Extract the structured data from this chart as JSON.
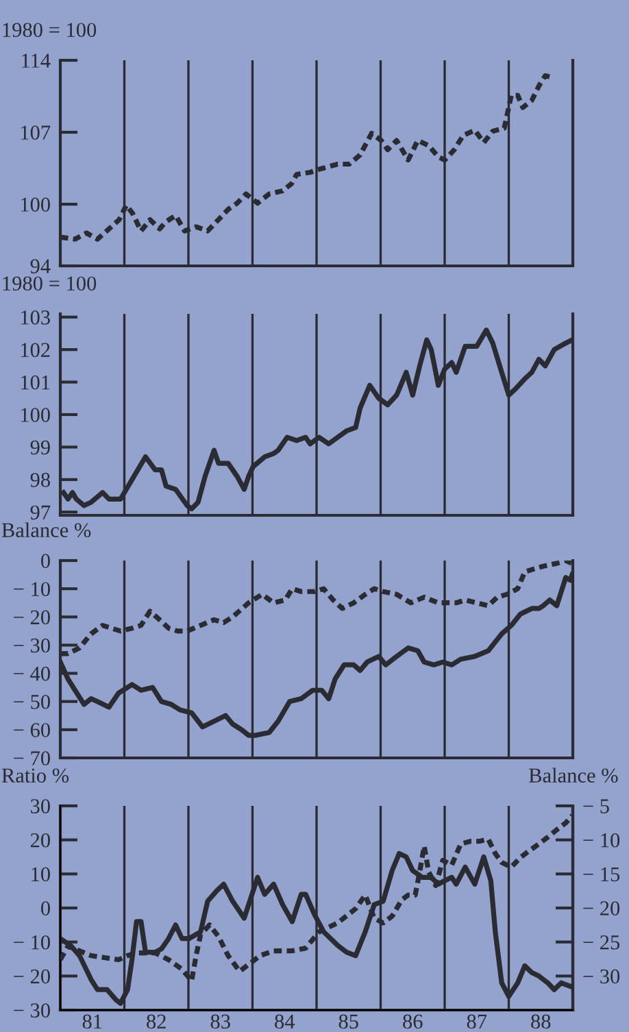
{
  "chart_data": [
    {
      "type": "line",
      "ylabel": "1980 = 100",
      "tick_labels": "y",
      "xlim": [
        80.5,
        88.5
      ],
      "xticks": [
        81,
        82,
        83,
        84,
        85,
        86,
        87,
        88
      ],
      "ylim": [
        94,
        114
      ],
      "yticks": [
        94,
        100,
        107,
        114
      ],
      "ref_lines": [
        {
          "axis": "x",
          "value": 81.5,
          "color": "#2b2b33"
        },
        {
          "axis": "x",
          "value": 82.5,
          "color": "#2b2b33"
        },
        {
          "axis": "x",
          "value": 83.5,
          "color": "#2b2b33"
        },
        {
          "axis": "x",
          "value": 84.5,
          "color": "#2b2b33"
        },
        {
          "axis": "x",
          "value": 85.5,
          "color": "#2b2b33"
        },
        {
          "axis": "x",
          "value": 86.5,
          "color": "#2b2b33"
        },
        {
          "axis": "x",
          "value": 87.5,
          "color": "#2b2b33"
        }
      ],
      "series": [
        {
          "color": "#2b2b33",
          "line_style": "dashed",
          "x": [
            80.5,
            80.73,
            80.91,
            81.08,
            81.26,
            81.42,
            81.53,
            81.63,
            81.76,
            81.9,
            82.05,
            82.15,
            82.3,
            82.44,
            82.62,
            82.8,
            82.97,
            83.12,
            83.26,
            83.4,
            83.58,
            83.76,
            83.97,
            84.11,
            84.19,
            84.4,
            84.54,
            84.83,
            85.01,
            85.18,
            85.36,
            85.51,
            85.61,
            85.75,
            85.93,
            86.08,
            86.25,
            86.4,
            86.5,
            86.65,
            86.79,
            86.97,
            87.11,
            87.25,
            87.43,
            87.54,
            87.64,
            87.72,
            87.86,
            87.97,
            88.07,
            88.14
          ],
          "values": [
            96.8,
            96.6,
            97.2,
            96.6,
            97.6,
            98.5,
            99.9,
            99.1,
            97.4,
            98.5,
            97.6,
            98.3,
            98.9,
            97.4,
            97.8,
            97.4,
            98.5,
            99.5,
            100.1,
            101.0,
            100.1,
            101.0,
            101.3,
            102.0,
            102.9,
            103.1,
            103.4,
            103.9,
            103.9,
            104.8,
            106.9,
            106.2,
            105.3,
            106.2,
            104.3,
            106.2,
            105.7,
            104.6,
            104.3,
            105.3,
            106.7,
            107.2,
            106.0,
            107.1,
            107.4,
            110.6,
            110.6,
            109.4,
            110.1,
            111.5,
            112.5,
            112.4
          ]
        }
      ]
    },
    {
      "type": "line",
      "ylabel": "1980 = 100",
      "tick_labels": "y",
      "xlim": [
        80.5,
        88.5
      ],
      "xticks": [
        81,
        82,
        83,
        84,
        85,
        86,
        87,
        88
      ],
      "ylim": [
        96.9,
        103.1
      ],
      "yticks": [
        97,
        98,
        99,
        100,
        101,
        102,
        103
      ],
      "ref_lines": [
        {
          "axis": "x",
          "value": 81.5,
          "color": "#2b2b33"
        },
        {
          "axis": "x",
          "value": 82.5,
          "color": "#2b2b33"
        },
        {
          "axis": "x",
          "value": 83.5,
          "color": "#2b2b33"
        },
        {
          "axis": "x",
          "value": 84.5,
          "color": "#2b2b33"
        },
        {
          "axis": "x",
          "value": 85.5,
          "color": "#2b2b33"
        },
        {
          "axis": "x",
          "value": 86.5,
          "color": "#2b2b33"
        },
        {
          "axis": "x",
          "value": 87.5,
          "color": "#2b2b33"
        }
      ],
      "series": [
        {
          "color": "#2b2b33",
          "line_style": "solid",
          "x": [
            80.55,
            80.62,
            80.69,
            80.75,
            80.87,
            80.98,
            81.16,
            81.26,
            81.44,
            81.62,
            81.83,
            81.98,
            82.08,
            82.15,
            82.3,
            82.48,
            82.55,
            82.65,
            82.76,
            82.9,
            82.97,
            83.12,
            83.26,
            83.37,
            83.44,
            83.51,
            83.69,
            83.83,
            83.9,
            84.04,
            84.19,
            84.33,
            84.4,
            84.54,
            84.69,
            84.83,
            84.97,
            85.11,
            85.18,
            85.33,
            85.47,
            85.61,
            85.75,
            85.9,
            86.0,
            86.11,
            86.22,
            86.29,
            86.4,
            86.5,
            86.61,
            86.68,
            86.82,
            87.0,
            87.15,
            87.25,
            87.39,
            87.5,
            87.61,
            87.75,
            87.86,
            87.97,
            88.07,
            88.21,
            88.39,
            88.49
          ],
          "values": [
            97.6,
            97.4,
            97.6,
            97.4,
            97.2,
            97.3,
            97.6,
            97.4,
            97.4,
            98.0,
            98.7,
            98.3,
            98.3,
            97.8,
            97.7,
            97.2,
            97.1,
            97.3,
            98.1,
            98.9,
            98.5,
            98.5,
            98.1,
            97.7,
            98.1,
            98.4,
            98.7,
            98.8,
            98.9,
            99.3,
            99.2,
            99.3,
            99.1,
            99.3,
            99.1,
            99.3,
            99.5,
            99.6,
            100.2,
            100.9,
            100.5,
            100.3,
            100.6,
            101.3,
            100.6,
            101.5,
            102.3,
            102.0,
            100.9,
            101.4,
            101.6,
            101.3,
            102.1,
            102.1,
            102.6,
            102.2,
            101.3,
            100.6,
            100.8,
            101.1,
            101.3,
            101.7,
            101.5,
            102.0,
            102.2,
            102.3
          ]
        }
      ]
    },
    {
      "type": "line",
      "ylabel": "Balance %",
      "tick_labels": "y",
      "xlim": [
        80.5,
        88.5
      ],
      "xticks": [
        81,
        82,
        83,
        84,
        85,
        86,
        87,
        88
      ],
      "ylim": [
        -70,
        0
      ],
      "yticks": [
        {
          "value": -70,
          "label": "− 70"
        },
        {
          "value": -60,
          "label": "− 60"
        },
        {
          "value": -50,
          "label": "− 50"
        },
        {
          "value": -40,
          "label": "− 40"
        },
        {
          "value": -30,
          "label": "− 30"
        },
        {
          "value": -20,
          "label": "− 20"
        },
        {
          "value": -10,
          "label": "− 10"
        },
        0
      ],
      "ref_lines": [
        {
          "axis": "x",
          "value": 81.5,
          "color": "#2b2b33"
        },
        {
          "axis": "x",
          "value": 82.5,
          "color": "#2b2b33"
        },
        {
          "axis": "x",
          "value": 83.5,
          "color": "#2b2b33"
        },
        {
          "axis": "x",
          "value": 84.5,
          "color": "#2b2b33"
        },
        {
          "axis": "x",
          "value": 85.5,
          "color": "#2b2b33"
        },
        {
          "axis": "x",
          "value": 86.5,
          "color": "#2b2b33"
        },
        {
          "axis": "x",
          "value": 87.5,
          "color": "#2b2b33"
        }
      ],
      "series": [
        {
          "color": "#2b2b33",
          "line_style": "dashed",
          "x": [
            80.5,
            80.62,
            80.8,
            80.98,
            81.16,
            81.3,
            81.44,
            81.62,
            81.76,
            81.9,
            82.05,
            82.19,
            82.33,
            82.48,
            82.69,
            82.9,
            83.05,
            83.19,
            83.44,
            83.65,
            83.83,
            84.01,
            84.12,
            84.26,
            84.47,
            84.61,
            84.76,
            84.9,
            85.08,
            85.26,
            85.4,
            85.54,
            85.75,
            85.97,
            86.18,
            86.4,
            86.54,
            86.68,
            86.82,
            87.0,
            87.18,
            87.32,
            87.47,
            87.64,
            87.75,
            87.89,
            88.04,
            88.25,
            88.39,
            88.48
          ],
          "values": [
            -33,
            -33,
            -31,
            -26,
            -23,
            -24,
            -25,
            -24,
            -23,
            -18,
            -21,
            -24,
            -25,
            -25,
            -23,
            -21,
            -22,
            -20,
            -15,
            -12,
            -15,
            -14,
            -10,
            -11,
            -11,
            -10,
            -14,
            -17,
            -15,
            -12,
            -10,
            -11,
            -12,
            -15,
            -13,
            -15,
            -15,
            -15,
            -14,
            -15,
            -16,
            -13,
            -12,
            -10,
            -4,
            -3,
            -2,
            -1,
            0,
            -1
          ]
        },
        {
          "color": "#2b2b33",
          "line_style": "solid",
          "x": [
            80.5,
            80.62,
            80.73,
            80.87,
            80.98,
            81.08,
            81.26,
            81.41,
            81.62,
            81.76,
            81.94,
            82.08,
            82.23,
            82.37,
            82.55,
            82.72,
            82.9,
            83.08,
            83.19,
            83.33,
            83.44,
            83.54,
            83.76,
            83.9,
            84.08,
            84.26,
            84.44,
            84.58,
            84.69,
            84.79,
            84.93,
            85.08,
            85.18,
            85.29,
            85.47,
            85.58,
            85.75,
            85.93,
            86.08,
            86.18,
            86.33,
            86.47,
            86.61,
            86.75,
            86.97,
            87.18,
            87.39,
            87.54,
            87.68,
            87.86,
            87.97,
            88.04,
            88.14,
            88.25,
            88.39,
            88.46,
            88.49
          ],
          "values": [
            -36,
            -42,
            -46,
            -51,
            -49,
            -50,
            -52,
            -47,
            -44,
            -46,
            -45,
            -50,
            -51,
            -53,
            -54,
            -59,
            -57,
            -55,
            -58,
            -60,
            -62,
            -62,
            -61,
            -57,
            -50,
            -49,
            -46,
            -46,
            -49,
            -42,
            -37,
            -37,
            -39,
            -36,
            -34,
            -37,
            -34,
            -31,
            -32,
            -36,
            -37,
            -36,
            -37,
            -35,
            -34,
            -32,
            -26,
            -23,
            -19,
            -17,
            -17,
            -16,
            -14,
            -16,
            -6,
            -7,
            -5
          ]
        }
      ]
    },
    {
      "type": "line",
      "ylabel": "Ratio %",
      "y2label": "Balance %",
      "xlim": [
        80.5,
        88.5
      ],
      "xticks": [
        81,
        82,
        83,
        84,
        85,
        86,
        87,
        88
      ],
      "ylim": [
        -30,
        30
      ],
      "yticks": [
        {
          "value": -30,
          "label": "− 30"
        },
        {
          "value": -20,
          "label": "− 20"
        },
        {
          "value": -10,
          "label": "− 10"
        },
        0,
        10,
        20,
        30
      ],
      "y2lim": [
        -35,
        -5
      ],
      "y2ticks": [
        {
          "value": -30,
          "label": "− 30"
        },
        {
          "value": -25,
          "label": "− 25"
        },
        {
          "value": -20,
          "label": "− 20"
        },
        {
          "value": -15,
          "label": "− 15"
        },
        {
          "value": -10,
          "label": "− 10"
        },
        {
          "value": -5,
          "label": "− 5"
        }
      ],
      "ref_lines": [
        {
          "axis": "x",
          "value": 81.5,
          "color": "#2b2b33"
        },
        {
          "axis": "x",
          "value": 82.5,
          "color": "#2b2b33"
        },
        {
          "axis": "x",
          "value": 83.5,
          "color": "#2b2b33"
        },
        {
          "axis": "x",
          "value": 84.5,
          "color": "#2b2b33"
        },
        {
          "axis": "x",
          "value": 85.5,
          "color": "#2b2b33"
        },
        {
          "axis": "x",
          "value": 86.5,
          "color": "#2b2b33"
        },
        {
          "axis": "x",
          "value": 87.5,
          "color": "#2b2b33"
        }
      ],
      "series": [
        {
          "color": "#2b2b33",
          "line_style": "solid",
          "x": [
            80.5,
            80.66,
            80.8,
            80.98,
            81.08,
            81.23,
            81.37,
            81.44,
            81.55,
            81.62,
            81.69,
            81.76,
            81.83,
            81.98,
            82.08,
            82.19,
            82.3,
            82.4,
            82.51,
            82.69,
            82.8,
            82.94,
            83.05,
            83.19,
            83.37,
            83.51,
            83.58,
            83.69,
            83.83,
            83.97,
            84.12,
            84.26,
            84.33,
            84.47,
            84.61,
            84.83,
            84.97,
            85.11,
            85.26,
            85.4,
            85.54,
            85.68,
            85.79,
            85.9,
            86.0,
            86.15,
            86.29,
            86.4,
            86.5,
            86.61,
            86.68,
            86.82,
            86.97,
            87.11,
            87.22,
            87.29,
            87.39,
            87.5,
            87.64,
            87.75,
            87.86,
            87.97,
            88.11,
            88.21,
            88.32,
            88.46
          ],
          "values": [
            -9,
            -11,
            -14,
            -21,
            -24,
            -24,
            -27,
            -28,
            -24,
            -15,
            -4,
            -4,
            -13,
            -13,
            -12,
            -9,
            -5,
            -9,
            -9,
            -7,
            2,
            5,
            7,
            2,
            -3,
            5,
            9,
            4,
            7,
            1,
            -4,
            4,
            4,
            -2,
            -7,
            -11,
            -13,
            -14,
            -7,
            1,
            2,
            11,
            16,
            15,
            11,
            9,
            9,
            7,
            8,
            9,
            7,
            12,
            7,
            15,
            8,
            -7,
            -22,
            -26,
            -22,
            -17,
            -19,
            -20,
            -22,
            -24,
            -22,
            -23
          ]
        },
        {
          "color": "#2b2b33",
          "line_style": "dashed",
          "axis": "y2",
          "x": [
            80.5,
            80.62,
            80.8,
            80.98,
            81.19,
            81.41,
            81.55,
            81.69,
            81.98,
            82.19,
            82.4,
            82.55,
            82.62,
            82.69,
            82.83,
            82.97,
            83.12,
            83.3,
            83.44,
            83.62,
            83.83,
            84.12,
            84.33,
            84.54,
            84.83,
            85.11,
            85.26,
            85.4,
            85.54,
            85.68,
            85.83,
            85.93,
            86.04,
            86.11,
            86.18,
            86.25,
            86.36,
            86.47,
            86.61,
            86.75,
            86.9,
            87.04,
            87.18,
            87.29,
            87.39,
            87.54,
            87.68,
            87.82,
            87.97,
            88.11,
            88.25,
            88.39,
            88.49
          ],
          "values": [
            -27.6,
            -25.6,
            -26.3,
            -27.0,
            -27.3,
            -27.6,
            -27.0,
            -26.6,
            -26.6,
            -27.6,
            -29.0,
            -30.7,
            -27.0,
            -23.9,
            -22.5,
            -24.2,
            -27.0,
            -29.3,
            -28.3,
            -27.0,
            -26.3,
            -26.3,
            -25.9,
            -23.5,
            -22.2,
            -20.1,
            -18.1,
            -21.5,
            -22.2,
            -21.2,
            -18.8,
            -18.1,
            -18.1,
            -14.7,
            -10.9,
            -14.7,
            -16.7,
            -13.0,
            -13.7,
            -10.6,
            -10.2,
            -10.2,
            -9.9,
            -12.0,
            -13.3,
            -14.0,
            -12.6,
            -11.6,
            -10.6,
            -9.6,
            -8.5,
            -7.5,
            -6.4
          ]
        }
      ]
    }
  ]
}
